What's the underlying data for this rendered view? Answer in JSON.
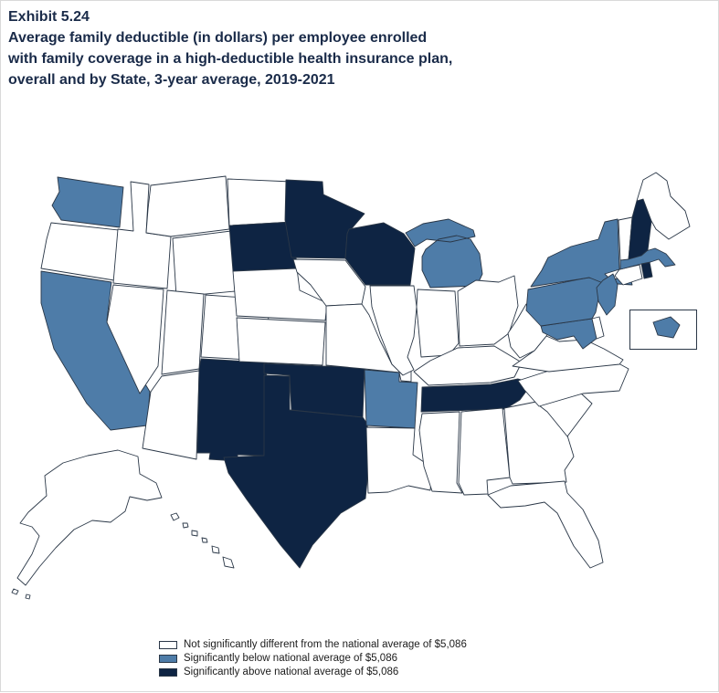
{
  "title": {
    "exhibit": "Exhibit 5.24",
    "lines": [
      "Average family deductible (in dollars) per employee enrolled",
      "with family coverage in a high-deductible health insurance plan,",
      "overall and by State, 3-year average, 2019-2021"
    ]
  },
  "colors": {
    "not_significant": "#FFFFFF",
    "below": "#4E7CA8",
    "above": "#0E2443",
    "border": "#2A3747",
    "title": "#1A2B49"
  },
  "legend": [
    {
      "key": "not_significant",
      "label": "Not significantly different from the national average of $5,086"
    },
    {
      "key": "below",
      "label": "Significantly below national average of $5,086"
    },
    {
      "key": "above",
      "label": "Significantly above national average of $5,086"
    }
  ],
  "chart_data": {
    "type": "choropleth_map",
    "title": "Average family deductible (in dollars) per employee enrolled with family coverage in a high-deductible health insurance plan, overall and by State, 3-year average, 2019-2021",
    "national_average_dollars": 5086,
    "categories": {
      "significantly_below_national_average": [
        "WA",
        "CA",
        "MI",
        "NY",
        "PA",
        "NJ",
        "MA",
        "MD",
        "AR",
        "DC"
      ],
      "significantly_above_national_average": [
        "MN",
        "WI",
        "SD",
        "NM",
        "OK",
        "TX",
        "TN",
        "NH",
        "RI"
      ],
      "not_significantly_different": [
        "AK",
        "AL",
        "AZ",
        "CO",
        "CT",
        "DE",
        "FL",
        "GA",
        "HI",
        "IA",
        "ID",
        "IL",
        "IN",
        "KS",
        "KY",
        "LA",
        "ME",
        "MO",
        "MS",
        "MT",
        "NC",
        "ND",
        "NE",
        "NV",
        "OH",
        "OR",
        "SC",
        "UT",
        "VA",
        "VT",
        "WV",
        "WY"
      ]
    }
  }
}
